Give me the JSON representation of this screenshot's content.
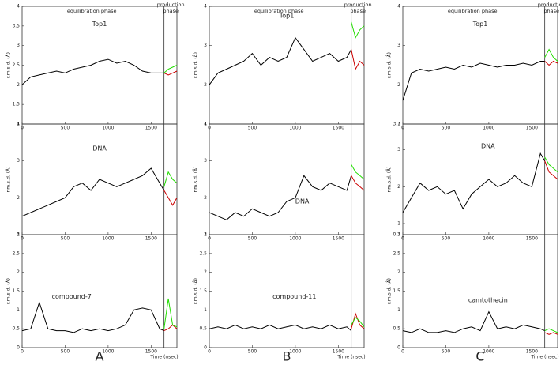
{
  "figure": {
    "columns": [
      {
        "label": "A",
        "equilibration": "equilibration phase",
        "production": [
          "production",
          "phase"
        ]
      },
      {
        "label": "B",
        "equilibration": "equilibration phase",
        "production": [
          "production",
          "phase"
        ]
      },
      {
        "label": "C",
        "equilibration": "equilibration phase",
        "production": [
          "production",
          "phase"
        ]
      }
    ]
  },
  "chart_data": [
    {
      "type": "line",
      "title": "Top1",
      "ylabel": "r.m.s.d. (Å)",
      "x": [
        0,
        100,
        200,
        300,
        400,
        500,
        600,
        700,
        800,
        900,
        1000,
        1100,
        1200,
        1300,
        1400,
        1500,
        1600,
        1650,
        1700,
        1750,
        1800
      ],
      "xlim": [
        0,
        1800
      ],
      "xticks": [
        0,
        500,
        1000,
        1500
      ],
      "ylim": [
        1,
        4
      ],
      "yticks": [
        1,
        1.5,
        2,
        2.5,
        3,
        3.5,
        4
      ],
      "phase_boundary": 1650,
      "series": [
        {
          "color": "#000000",
          "values": [
            2.0,
            2.2,
            2.25,
            2.3,
            2.35,
            2.3,
            2.4,
            2.45,
            2.5,
            2.6,
            2.65,
            2.55,
            2.6,
            2.5,
            2.35,
            2.3,
            2.3,
            2.3,
            null,
            null,
            null
          ]
        },
        {
          "color": "#cc0000",
          "values": [
            null,
            null,
            null,
            null,
            null,
            null,
            null,
            null,
            null,
            null,
            null,
            null,
            null,
            null,
            null,
            null,
            null,
            2.3,
            2.25,
            2.3,
            2.35
          ]
        },
        {
          "color": "#22dd00",
          "values": [
            null,
            null,
            null,
            null,
            null,
            null,
            null,
            null,
            null,
            null,
            null,
            null,
            null,
            null,
            null,
            null,
            null,
            2.3,
            2.4,
            2.45,
            2.5
          ]
        }
      ]
    },
    {
      "type": "line",
      "title": "DNA",
      "ylabel": "r.m.s.d. (Å)",
      "x": [
        0,
        100,
        200,
        300,
        400,
        500,
        600,
        700,
        800,
        900,
        1000,
        1100,
        1200,
        1300,
        1400,
        1500,
        1600,
        1650,
        1700,
        1750,
        1800
      ],
      "xlim": [
        0,
        1800
      ],
      "xticks": [
        0,
        500,
        1000,
        1500
      ],
      "ylim": [
        1,
        4
      ],
      "yticks": [
        1,
        2,
        3,
        4
      ],
      "phase_boundary": 1650,
      "series": [
        {
          "color": "#000000",
          "values": [
            1.5,
            1.6,
            1.7,
            1.8,
            1.9,
            2.0,
            2.3,
            2.4,
            2.2,
            2.5,
            2.4,
            2.3,
            2.4,
            2.5,
            2.6,
            2.8,
            2.4,
            2.2,
            null,
            null,
            null
          ]
        },
        {
          "color": "#cc0000",
          "values": [
            null,
            null,
            null,
            null,
            null,
            null,
            null,
            null,
            null,
            null,
            null,
            null,
            null,
            null,
            null,
            null,
            null,
            2.2,
            2.0,
            1.8,
            2.0
          ]
        },
        {
          "color": "#22dd00",
          "values": [
            null,
            null,
            null,
            null,
            null,
            null,
            null,
            null,
            null,
            null,
            null,
            null,
            null,
            null,
            null,
            null,
            null,
            2.3,
            2.7,
            2.5,
            2.4
          ]
        }
      ]
    },
    {
      "type": "line",
      "title": "compound-7",
      "ylabel": "r.m.s.d. (Å)",
      "xlabel": "Time (nsec)",
      "x": [
        0,
        100,
        200,
        300,
        400,
        500,
        600,
        700,
        800,
        900,
        1000,
        1100,
        1200,
        1300,
        1400,
        1500,
        1600,
        1650,
        1700,
        1750,
        1800
      ],
      "xlim": [
        0,
        1800
      ],
      "xticks": [
        0,
        500,
        1000,
        1500
      ],
      "ylim": [
        0,
        3
      ],
      "yticks": [
        0,
        0.5,
        1,
        1.5,
        2,
        2.5,
        3
      ],
      "phase_boundary": 1650,
      "series": [
        {
          "color": "#000000",
          "values": [
            0.45,
            0.5,
            1.2,
            0.5,
            0.45,
            0.45,
            0.4,
            0.5,
            0.45,
            0.5,
            0.45,
            0.5,
            0.6,
            1.0,
            1.05,
            1.0,
            0.5,
            0.45,
            null,
            null,
            null
          ]
        },
        {
          "color": "#cc0000",
          "values": [
            null,
            null,
            null,
            null,
            null,
            null,
            null,
            null,
            null,
            null,
            null,
            null,
            null,
            null,
            null,
            null,
            null,
            0.45,
            0.5,
            0.6,
            0.5
          ]
        },
        {
          "color": "#22dd00",
          "values": [
            null,
            null,
            null,
            null,
            null,
            null,
            null,
            null,
            null,
            null,
            null,
            null,
            null,
            null,
            null,
            null,
            null,
            0.5,
            1.3,
            0.6,
            0.55
          ]
        }
      ]
    },
    {
      "type": "line",
      "title": "Top1",
      "ylabel": "r.m.s.d. (Å)",
      "x": [
        0,
        100,
        200,
        300,
        400,
        500,
        600,
        700,
        800,
        900,
        1000,
        1100,
        1200,
        1300,
        1400,
        1500,
        1600,
        1650,
        1700,
        1750,
        1800
      ],
      "xlim": [
        0,
        1800
      ],
      "xticks": [
        0,
        500,
        1000,
        1500
      ],
      "ylim": [
        1,
        4
      ],
      "yticks": [
        1,
        2,
        3,
        4
      ],
      "phase_boundary": 1650,
      "series": [
        {
          "color": "#000000",
          "values": [
            2.0,
            2.3,
            2.4,
            2.5,
            2.6,
            2.8,
            2.5,
            2.7,
            2.6,
            2.7,
            3.2,
            2.9,
            2.6,
            2.7,
            2.8,
            2.6,
            2.7,
            2.9,
            null,
            null,
            null
          ]
        },
        {
          "color": "#cc0000",
          "values": [
            null,
            null,
            null,
            null,
            null,
            null,
            null,
            null,
            null,
            null,
            null,
            null,
            null,
            null,
            null,
            null,
            null,
            2.9,
            2.4,
            2.6,
            2.5
          ]
        },
        {
          "color": "#22dd00",
          "values": [
            null,
            null,
            null,
            null,
            null,
            null,
            null,
            null,
            null,
            null,
            null,
            null,
            null,
            null,
            null,
            null,
            null,
            3.6,
            3.2,
            3.4,
            3.5
          ]
        }
      ]
    },
    {
      "type": "line",
      "title": "DNA",
      "ylabel": "r.m.s.d. (Å)",
      "x": [
        0,
        100,
        200,
        300,
        400,
        500,
        600,
        700,
        800,
        900,
        1000,
        1100,
        1200,
        1300,
        1400,
        1500,
        1600,
        1650,
        1700,
        1750,
        1800
      ],
      "xlim": [
        0,
        1800
      ],
      "xticks": [
        0,
        500,
        1000,
        1500
      ],
      "ylim": [
        1,
        4
      ],
      "yticks": [
        1,
        2,
        3,
        4
      ],
      "phase_boundary": 1650,
      "series": [
        {
          "color": "#000000",
          "values": [
            1.6,
            1.5,
            1.4,
            1.6,
            1.5,
            1.7,
            1.6,
            1.5,
            1.6,
            1.9,
            2.0,
            2.6,
            2.3,
            2.2,
            2.4,
            2.3,
            2.2,
            2.6,
            null,
            null,
            null
          ]
        },
        {
          "color": "#cc0000",
          "values": [
            null,
            null,
            null,
            null,
            null,
            null,
            null,
            null,
            null,
            null,
            null,
            null,
            null,
            null,
            null,
            null,
            null,
            2.6,
            2.4,
            2.3,
            2.2
          ]
        },
        {
          "color": "#22dd00",
          "values": [
            null,
            null,
            null,
            null,
            null,
            null,
            null,
            null,
            null,
            null,
            null,
            null,
            null,
            null,
            null,
            null,
            null,
            2.9,
            2.7,
            2.6,
            2.5
          ]
        }
      ]
    },
    {
      "type": "line",
      "title": "compound-11",
      "ylabel": "r.m.s.d. (Å)",
      "xlabel": "Time (nsec)",
      "x": [
        0,
        100,
        200,
        300,
        400,
        500,
        600,
        700,
        800,
        900,
        1000,
        1100,
        1200,
        1300,
        1400,
        1500,
        1600,
        1650,
        1700,
        1750,
        1800
      ],
      "xlim": [
        0,
        1800
      ],
      "xticks": [
        0,
        500,
        1000,
        1500
      ],
      "ylim": [
        0,
        3
      ],
      "yticks": [
        0,
        0.5,
        1,
        1.5,
        2,
        2.5,
        3
      ],
      "phase_boundary": 1650,
      "series": [
        {
          "color": "#000000",
          "values": [
            0.5,
            0.55,
            0.5,
            0.6,
            0.5,
            0.55,
            0.5,
            0.6,
            0.5,
            0.55,
            0.6,
            0.5,
            0.55,
            0.5,
            0.6,
            0.5,
            0.55,
            0.45,
            null,
            null,
            null
          ]
        },
        {
          "color": "#cc0000",
          "values": [
            null,
            null,
            null,
            null,
            null,
            null,
            null,
            null,
            null,
            null,
            null,
            null,
            null,
            null,
            null,
            null,
            null,
            0.5,
            0.9,
            0.6,
            0.5
          ]
        },
        {
          "color": "#22dd00",
          "values": [
            null,
            null,
            null,
            null,
            null,
            null,
            null,
            null,
            null,
            null,
            null,
            null,
            null,
            null,
            null,
            null,
            null,
            0.6,
            0.8,
            0.7,
            0.55
          ]
        }
      ]
    },
    {
      "type": "line",
      "title": "Top1",
      "ylabel": "r.m.s.d. (Å)",
      "x": [
        0,
        100,
        200,
        300,
        400,
        500,
        600,
        700,
        800,
        900,
        1000,
        1100,
        1200,
        1300,
        1400,
        1500,
        1600,
        1650,
        1700,
        1750,
        1800
      ],
      "xlim": [
        0,
        1800
      ],
      "xticks": [
        0,
        500,
        1000,
        1500
      ],
      "ylim": [
        1,
        4
      ],
      "yticks": [
        1,
        2,
        3,
        4
      ],
      "phase_boundary": 1650,
      "series": [
        {
          "color": "#000000",
          "values": [
            1.6,
            2.3,
            2.4,
            2.35,
            2.4,
            2.45,
            2.4,
            2.5,
            2.45,
            2.55,
            2.5,
            2.45,
            2.5,
            2.5,
            2.55,
            2.5,
            2.6,
            2.6,
            null,
            null,
            null
          ]
        },
        {
          "color": "#cc0000",
          "values": [
            null,
            null,
            null,
            null,
            null,
            null,
            null,
            null,
            null,
            null,
            null,
            null,
            null,
            null,
            null,
            null,
            null,
            2.6,
            2.5,
            2.6,
            2.55
          ]
        },
        {
          "color": "#22dd00",
          "values": [
            null,
            null,
            null,
            null,
            null,
            null,
            null,
            null,
            null,
            null,
            null,
            null,
            null,
            null,
            null,
            null,
            null,
            2.7,
            2.9,
            2.7,
            2.6
          ]
        }
      ]
    },
    {
      "type": "line",
      "title": "DNA",
      "ylabel": "r.m.s.d. (Å)",
      "x": [
        0,
        100,
        200,
        300,
        400,
        500,
        600,
        700,
        800,
        900,
        1000,
        1100,
        1200,
        1300,
        1400,
        1500,
        1600,
        1650,
        1700,
        1750,
        1800
      ],
      "xlim": [
        0,
        1800
      ],
      "xticks": [
        0,
        500,
        1000,
        1500
      ],
      "ylim": [
        0.7,
        3.7
      ],
      "yticks": [
        0.7,
        1,
        2,
        3,
        3.7
      ],
      "phase_boundary": 1650,
      "series": [
        {
          "color": "#000000",
          "values": [
            1.3,
            1.7,
            2.1,
            1.9,
            2.0,
            1.8,
            1.9,
            1.4,
            1.8,
            2.0,
            2.2,
            2.0,
            2.1,
            2.3,
            2.1,
            2.0,
            2.9,
            2.7,
            null,
            null,
            null
          ]
        },
        {
          "color": "#cc0000",
          "values": [
            null,
            null,
            null,
            null,
            null,
            null,
            null,
            null,
            null,
            null,
            null,
            null,
            null,
            null,
            null,
            null,
            null,
            2.7,
            2.4,
            2.3,
            2.2
          ]
        },
        {
          "color": "#22dd00",
          "values": [
            null,
            null,
            null,
            null,
            null,
            null,
            null,
            null,
            null,
            null,
            null,
            null,
            null,
            null,
            null,
            null,
            null,
            2.8,
            2.6,
            2.5,
            2.4
          ]
        }
      ]
    },
    {
      "type": "line",
      "title": "camtothecin",
      "ylabel": "r.m.s.d. (Å)",
      "xlabel": "Time (nsec)",
      "x": [
        0,
        100,
        200,
        300,
        400,
        500,
        600,
        700,
        800,
        900,
        1000,
        1100,
        1200,
        1300,
        1400,
        1500,
        1600,
        1650,
        1700,
        1750,
        1800
      ],
      "xlim": [
        0,
        1800
      ],
      "xticks": [
        0,
        500,
        1000,
        1500
      ],
      "ylim": [
        0,
        3
      ],
      "yticks": [
        0,
        0.5,
        1,
        1.5,
        2,
        2.5,
        3
      ],
      "phase_boundary": 1650,
      "series": [
        {
          "color": "#000000",
          "values": [
            0.45,
            0.4,
            0.5,
            0.4,
            0.4,
            0.45,
            0.4,
            0.5,
            0.55,
            0.45,
            0.95,
            0.5,
            0.55,
            0.5,
            0.6,
            0.55,
            0.5,
            0.45,
            null,
            null,
            null
          ]
        },
        {
          "color": "#cc0000",
          "values": [
            null,
            null,
            null,
            null,
            null,
            null,
            null,
            null,
            null,
            null,
            null,
            null,
            null,
            null,
            null,
            null,
            null,
            0.4,
            0.35,
            0.4,
            0.35
          ]
        },
        {
          "color": "#22dd00",
          "values": [
            null,
            null,
            null,
            null,
            null,
            null,
            null,
            null,
            null,
            null,
            null,
            null,
            null,
            null,
            null,
            null,
            null,
            0.45,
            0.5,
            0.45,
            0.4
          ]
        }
      ]
    }
  ]
}
